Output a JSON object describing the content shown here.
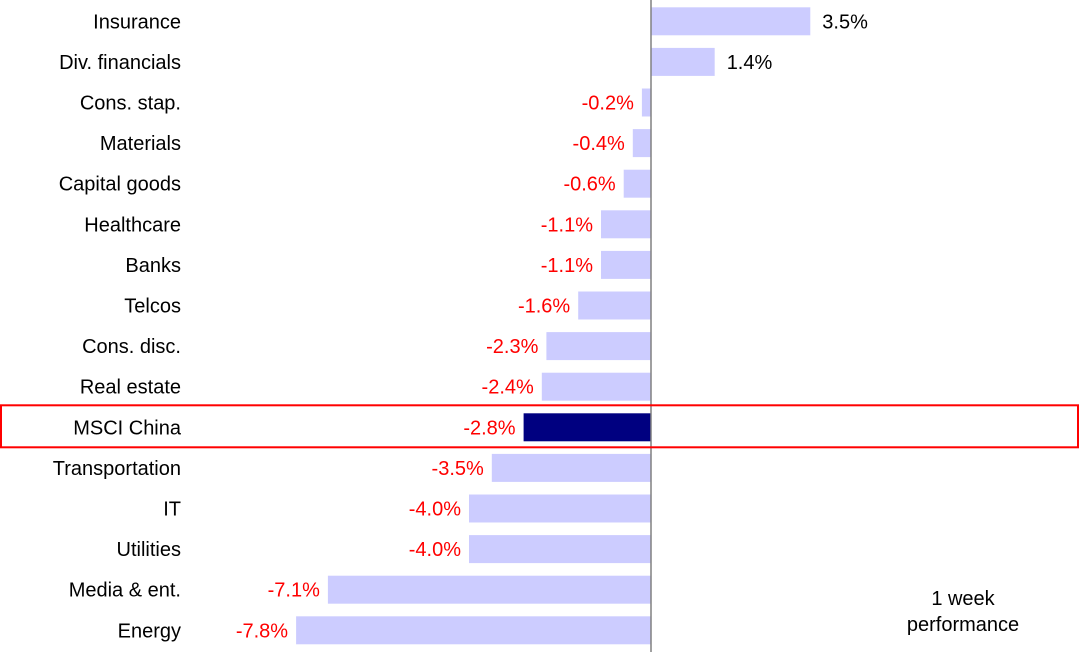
{
  "chart_data": {
    "type": "bar",
    "orientation": "horizontal",
    "categories": [
      "Insurance",
      "Div. financials",
      "Cons. stap.",
      "Materials",
      "Capital goods",
      "Healthcare",
      "Banks",
      "Telcos",
      "Cons. disc.",
      "Real estate",
      "MSCI China",
      "Transportation",
      "IT",
      "Utilities",
      "Media & ent.",
      "Energy"
    ],
    "values": [
      3.5,
      1.4,
      -0.2,
      -0.4,
      -0.6,
      -1.1,
      -1.1,
      -1.6,
      -2.3,
      -2.4,
      -2.8,
      -3.5,
      -4.0,
      -4.0,
      -7.1,
      -7.8
    ],
    "value_labels": [
      "3.5%",
      "1.4%",
      "-0.2%",
      "-0.4%",
      "-0.6%",
      "-1.1%",
      "-1.1%",
      "-1.6%",
      "-2.3%",
      "-2.4%",
      "-2.8%",
      "-3.5%",
      "-4.0%",
      "-4.0%",
      "-7.1%",
      "-7.8%"
    ],
    "highlight_category": "MSCI China",
    "unit": "%",
    "xlim": [
      -8.0,
      3.5
    ],
    "annotation_line1": "1 week",
    "annotation_line2": "performance",
    "grid": false,
    "colors": {
      "bar": "#ccccff",
      "highlight_bar": "#000080",
      "highlight_box": "#ff0000",
      "negative_label": "#ff0000",
      "positive_label": "#000000",
      "axis": "#808080"
    }
  }
}
